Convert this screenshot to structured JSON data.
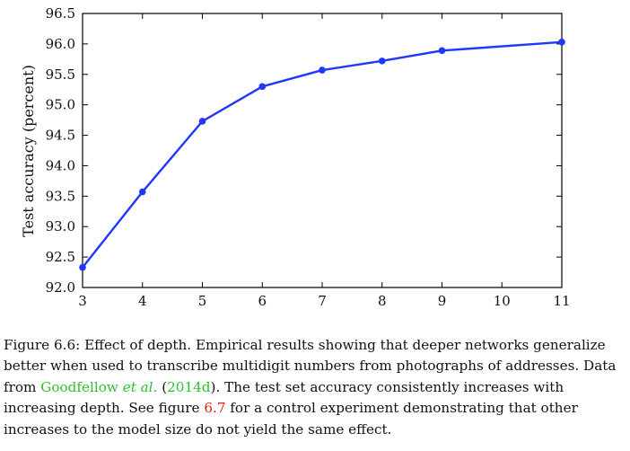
{
  "chart_data": {
    "type": "line",
    "xlabel": "",
    "ylabel": "Test accuracy (percent)",
    "x": [
      3,
      4,
      5,
      6,
      7,
      8,
      9,
      11
    ],
    "series": [
      {
        "values": [
          92.33,
          93.57,
          94.73,
          95.3,
          95.57,
          95.72,
          95.89,
          96.03
        ]
      }
    ],
    "xlim": [
      3,
      11
    ],
    "ylim": [
      92.0,
      96.5
    ],
    "xticks": [
      3,
      4,
      5,
      6,
      7,
      8,
      9,
      10,
      11
    ],
    "yticks": [
      92.0,
      92.5,
      93.0,
      93.5,
      94.0,
      94.5,
      95.0,
      95.5,
      96.0,
      96.5
    ],
    "ytick_labels": [
      "92.0",
      "92.5",
      "93.0",
      "93.5",
      "94.0",
      "94.5",
      "95.0",
      "95.5",
      "96.0",
      "96.5"
    ],
    "grid": false,
    "line_color": "#1f37ff"
  },
  "caption": {
    "lead": "Figure 6.6: Effect of depth. Empirical results showing that deeper networks generalize better when used to transcribe multidigit numbers from photographs of addresses. Data from ",
    "cite_author": "Goodfellow ",
    "cite_etal": "et al.",
    "paren_open": " (",
    "cite_year": "2014d",
    "mid": "). The test set accuracy consistently increases with increasing depth. See figure ",
    "fig_ref": "6.7",
    "tail": " for a control experiment demonstrating that other increases to the model size do not yield the same effect.",
    "cite_color": "#2fbf2f",
    "ref_color": "#e0201a"
  }
}
